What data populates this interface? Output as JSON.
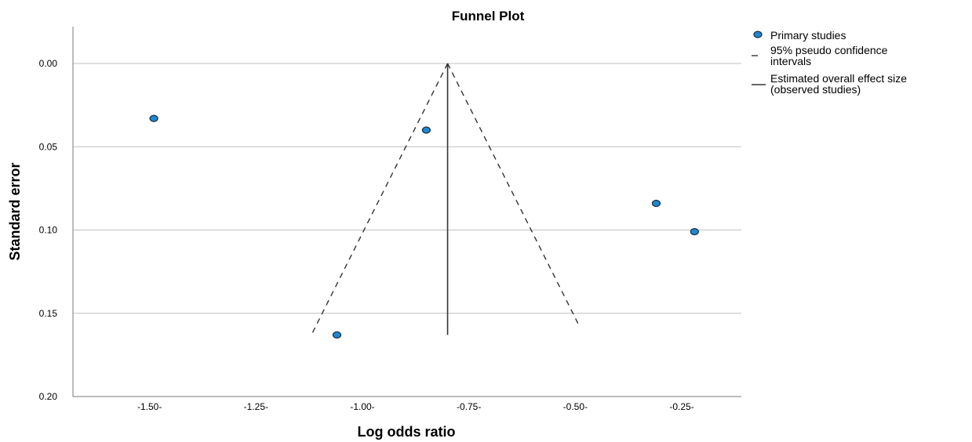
{
  "chart_data": {
    "type": "scatter",
    "title": "Funnel Plot",
    "xlabel": "Log odds ratio",
    "ylabel": "Standard error",
    "xlim": [
      -1.68,
      -0.11
    ],
    "ylim": [
      0.0,
      0.2
    ],
    "y_reversed": true,
    "y_ticks": [
      0.0,
      0.05,
      0.1,
      0.15,
      0.2
    ],
    "y_tick_labels": [
      "0.00",
      "0.05",
      "0.10",
      "0.15",
      "0.20"
    ],
    "x_ticks": [
      -1.5,
      -1.25,
      -1.0,
      -0.75,
      -0.5,
      -0.25
    ],
    "x_tick_labels": [
      "-1.50-",
      "-1.25-",
      "-1.00-",
      "-0.75-",
      "-0.50-",
      "-0.25-"
    ],
    "grid": "horizontal",
    "legend_position": "top-right",
    "legend": [
      {
        "name": "Primary studies",
        "kind": "marker"
      },
      {
        "name": "95% pseudo confidence intervals",
        "lines": [
          "95% pseudo confidence",
          "intervals"
        ],
        "kind": "dashed"
      },
      {
        "name": "Estimated overall effect size (observed studies)",
        "lines": [
          "Estimated overall effect size",
          "(observed studies)"
        ],
        "kind": "solid"
      }
    ],
    "series": [
      {
        "name": "Primary studies",
        "points": [
          {
            "x": -1.49,
            "y": 0.033
          },
          {
            "x": -0.85,
            "y": 0.04
          },
          {
            "x": -0.31,
            "y": 0.084
          },
          {
            "x": -0.22,
            "y": 0.101
          },
          {
            "x": -1.06,
            "y": 0.163
          }
        ]
      }
    ],
    "pseudo_ci": {
      "left": [
        {
          "x": -0.8,
          "y": 0.0
        },
        {
          "x": -1.12,
          "y": 0.163
        }
      ],
      "right": [
        {
          "x": -0.8,
          "y": 0.0
        },
        {
          "x": -0.49,
          "y": 0.158
        }
      ]
    },
    "overall_effect": {
      "x": -0.8,
      "y_from": 0.0,
      "y_to": 0.163
    },
    "colors": {
      "marker_fill": "#1e88d0",
      "marker_stroke": "#1a2a3a",
      "grid": "#c0c0c0",
      "axis": "#7a7a7a",
      "lines": "#333333"
    }
  }
}
